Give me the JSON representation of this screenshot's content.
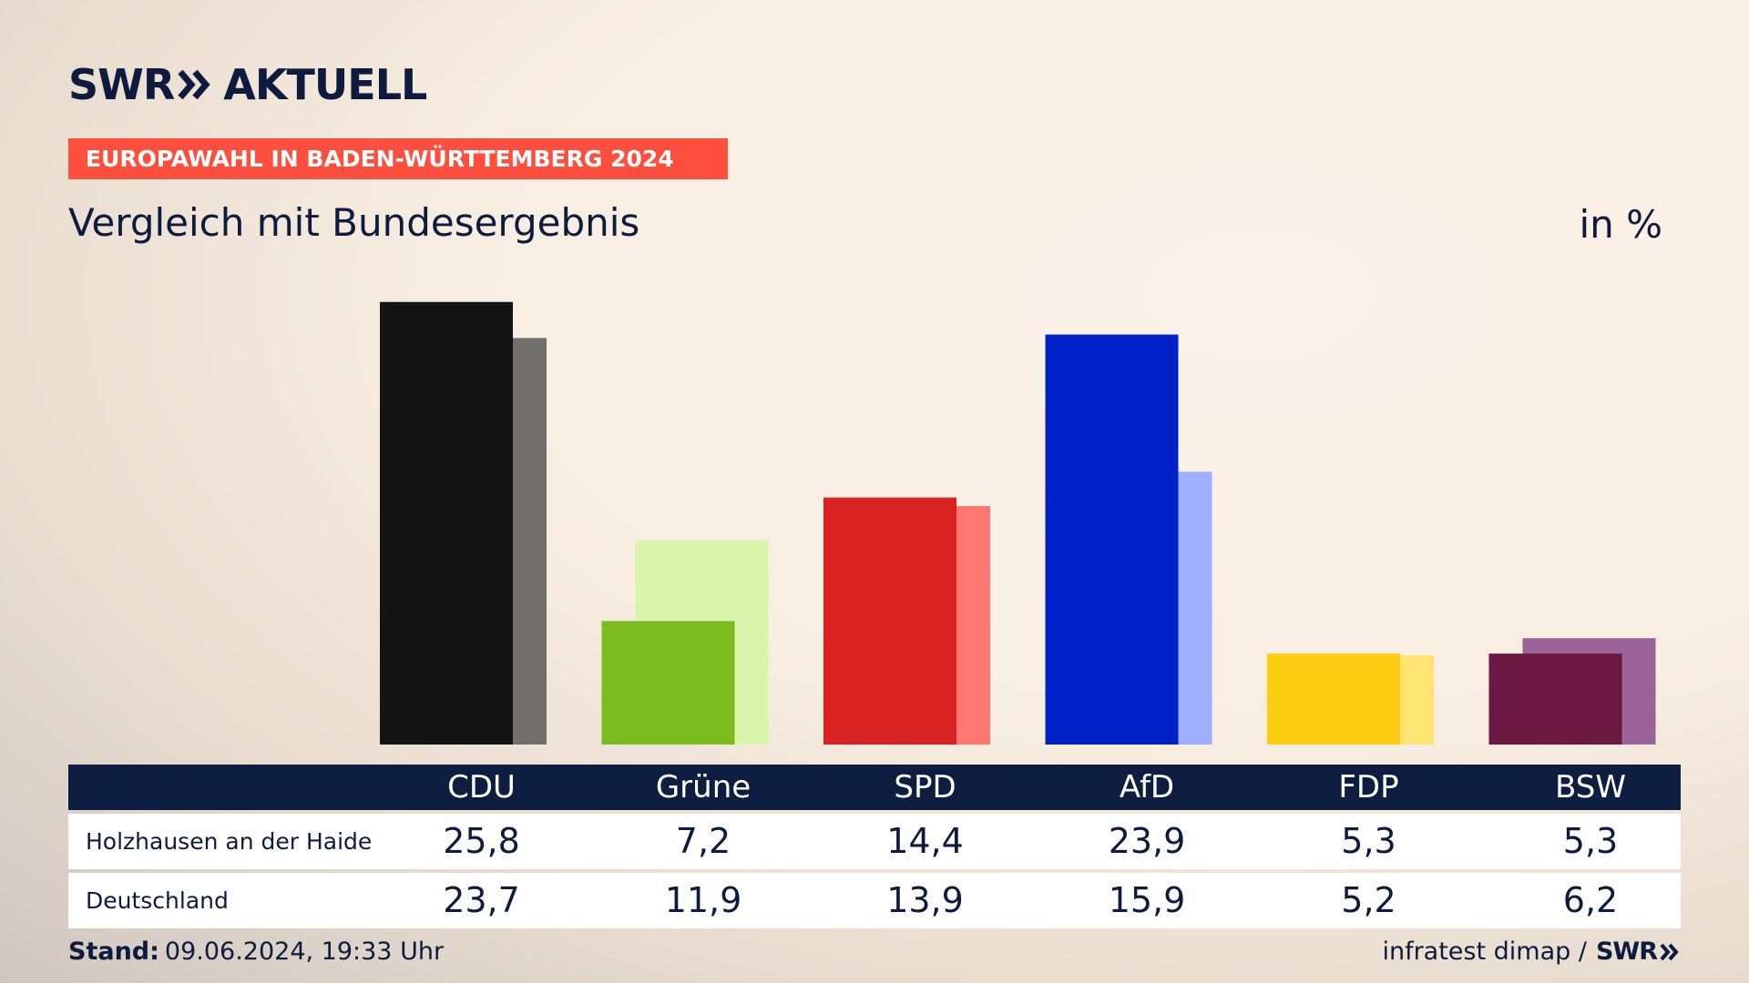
{
  "header": {
    "logo_left": "SWR",
    "logo_right": "AKTUELL",
    "tag": "EUROPAWAHL IN BADEN-WÜRTTEMBERG 2024",
    "subtitle": "Vergleich mit Bundesergebnis",
    "unit": "in %"
  },
  "colors": {
    "tag": "#fe4f3e",
    "navy": "#0e1e40"
  },
  "chart_data": {
    "type": "bar",
    "categories": [
      "CDU",
      "Grüne",
      "SPD",
      "AfD",
      "FDP",
      "BSW"
    ],
    "series": [
      {
        "name": "Holzhausen an der Haide",
        "values": [
          25.8,
          7.2,
          14.4,
          23.9,
          5.3,
          5.3
        ],
        "display": [
          "25,8",
          "7,2",
          "14,4",
          "23,9",
          "5,3",
          "5,3"
        ],
        "colors": [
          "#141414",
          "#7abc1e",
          "#d72221",
          "#0020c8",
          "#fecc10",
          "#6c1842"
        ]
      },
      {
        "name": "Deutschland",
        "values": [
          23.7,
          11.9,
          13.9,
          15.9,
          5.2,
          6.2
        ],
        "display": [
          "23,7",
          "11,9",
          "13,9",
          "15,9",
          "5,2",
          "6,2"
        ],
        "colors": [
          "#72706c",
          "#d8f5ab",
          "#ff7771",
          "#9eaefe",
          "#fee473",
          "#9a6298"
        ]
      }
    ],
    "ylim": [
      0,
      26
    ]
  },
  "footer": {
    "stand_label": "Stand:",
    "stand_value": "09.06.2024, 19:33 Uhr",
    "source": "infratest dimap /",
    "source_logo": "SWR"
  }
}
